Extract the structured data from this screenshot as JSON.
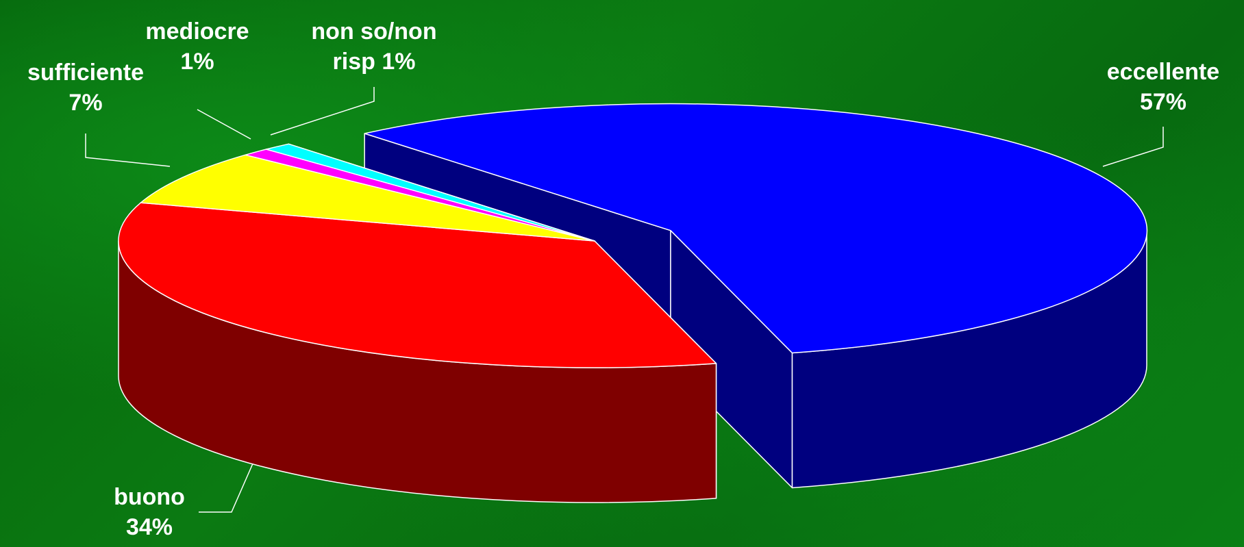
{
  "chart_data": {
    "type": "pie3d",
    "categories": [
      "eccellente",
      "buono",
      "sufficiente",
      "mediocre",
      "non so/non risp"
    ],
    "values": [
      57,
      34,
      7,
      1,
      1
    ],
    "value_labels": [
      "57%",
      "34%",
      "7%",
      "1%",
      "1%"
    ],
    "colors": [
      "#0000ff",
      "#ff0000",
      "#ffff00",
      "#ff00ff",
      "#00ffff"
    ],
    "exploded": [
      0
    ]
  }
}
